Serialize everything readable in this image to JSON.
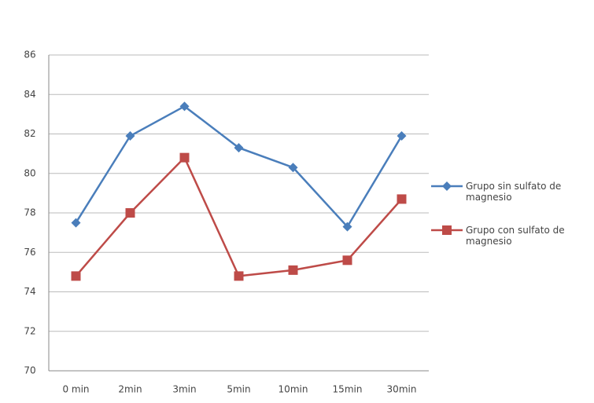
{
  "chart_data": {
    "type": "line",
    "categories": [
      "0 min",
      "2min",
      "3min",
      "5min",
      "10min",
      "15min",
      "30min"
    ],
    "series": [
      {
        "name": "Grupo sin sulfato de magnesio",
        "color": "#4a7ebb",
        "marker": "diamond",
        "values": [
          77.5,
          81.9,
          83.4,
          81.3,
          80.3,
          77.3,
          81.9
        ]
      },
      {
        "name": "Grupo con sulfato de magnesio",
        "color": "#be4b48",
        "marker": "square",
        "values": [
          74.8,
          78.0,
          80.8,
          74.8,
          75.1,
          75.6,
          78.7
        ]
      }
    ],
    "ylim": [
      70,
      86
    ],
    "yticks": [
      70,
      72,
      74,
      76,
      78,
      80,
      82,
      84,
      86
    ],
    "grid": true,
    "legend": "right"
  }
}
